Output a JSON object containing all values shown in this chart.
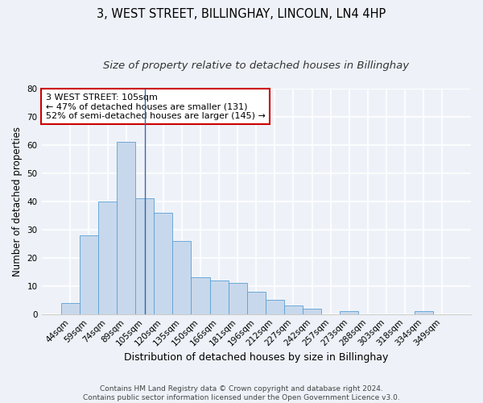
{
  "title": "3, WEST STREET, BILLINGHAY, LINCOLN, LN4 4HP",
  "subtitle": "Size of property relative to detached houses in Billinghay",
  "xlabel": "Distribution of detached houses by size in Billinghay",
  "ylabel": "Number of detached properties",
  "categories": [
    "44sqm",
    "59sqm",
    "74sqm",
    "89sqm",
    "105sqm",
    "120sqm",
    "135sqm",
    "150sqm",
    "166sqm",
    "181sqm",
    "196sqm",
    "212sqm",
    "227sqm",
    "242sqm",
    "257sqm",
    "273sqm",
    "288sqm",
    "303sqm",
    "318sqm",
    "334sqm",
    "349sqm"
  ],
  "values": [
    4,
    28,
    40,
    61,
    41,
    36,
    26,
    13,
    12,
    11,
    8,
    5,
    3,
    2,
    0,
    1,
    0,
    0,
    0,
    1,
    0
  ],
  "bar_color": "#c8d8ec",
  "bar_edge_color": "#5a9fd4",
  "highlight_bar_index": 4,
  "vline_color": "#3366aa",
  "ylim": [
    0,
    80
  ],
  "yticks": [
    0,
    10,
    20,
    30,
    40,
    50,
    60,
    70,
    80
  ],
  "annotation_title": "3 WEST STREET: 105sqm",
  "annotation_line1": "← 47% of detached houses are smaller (131)",
  "annotation_line2": "52% of semi-detached houses are larger (145) →",
  "annotation_box_facecolor": "#ffffff",
  "annotation_box_edgecolor": "#cc0000",
  "footer_line1": "Contains HM Land Registry data © Crown copyright and database right 2024.",
  "footer_line2": "Contains public sector information licensed under the Open Government Licence v3.0.",
  "background_color": "#eef2f8",
  "grid_color": "#ffffff",
  "title_fontsize": 10.5,
  "subtitle_fontsize": 9.5,
  "xlabel_fontsize": 9,
  "ylabel_fontsize": 8.5,
  "tick_fontsize": 7.5,
  "annotation_fontsize": 8,
  "footer_fontsize": 6.5
}
